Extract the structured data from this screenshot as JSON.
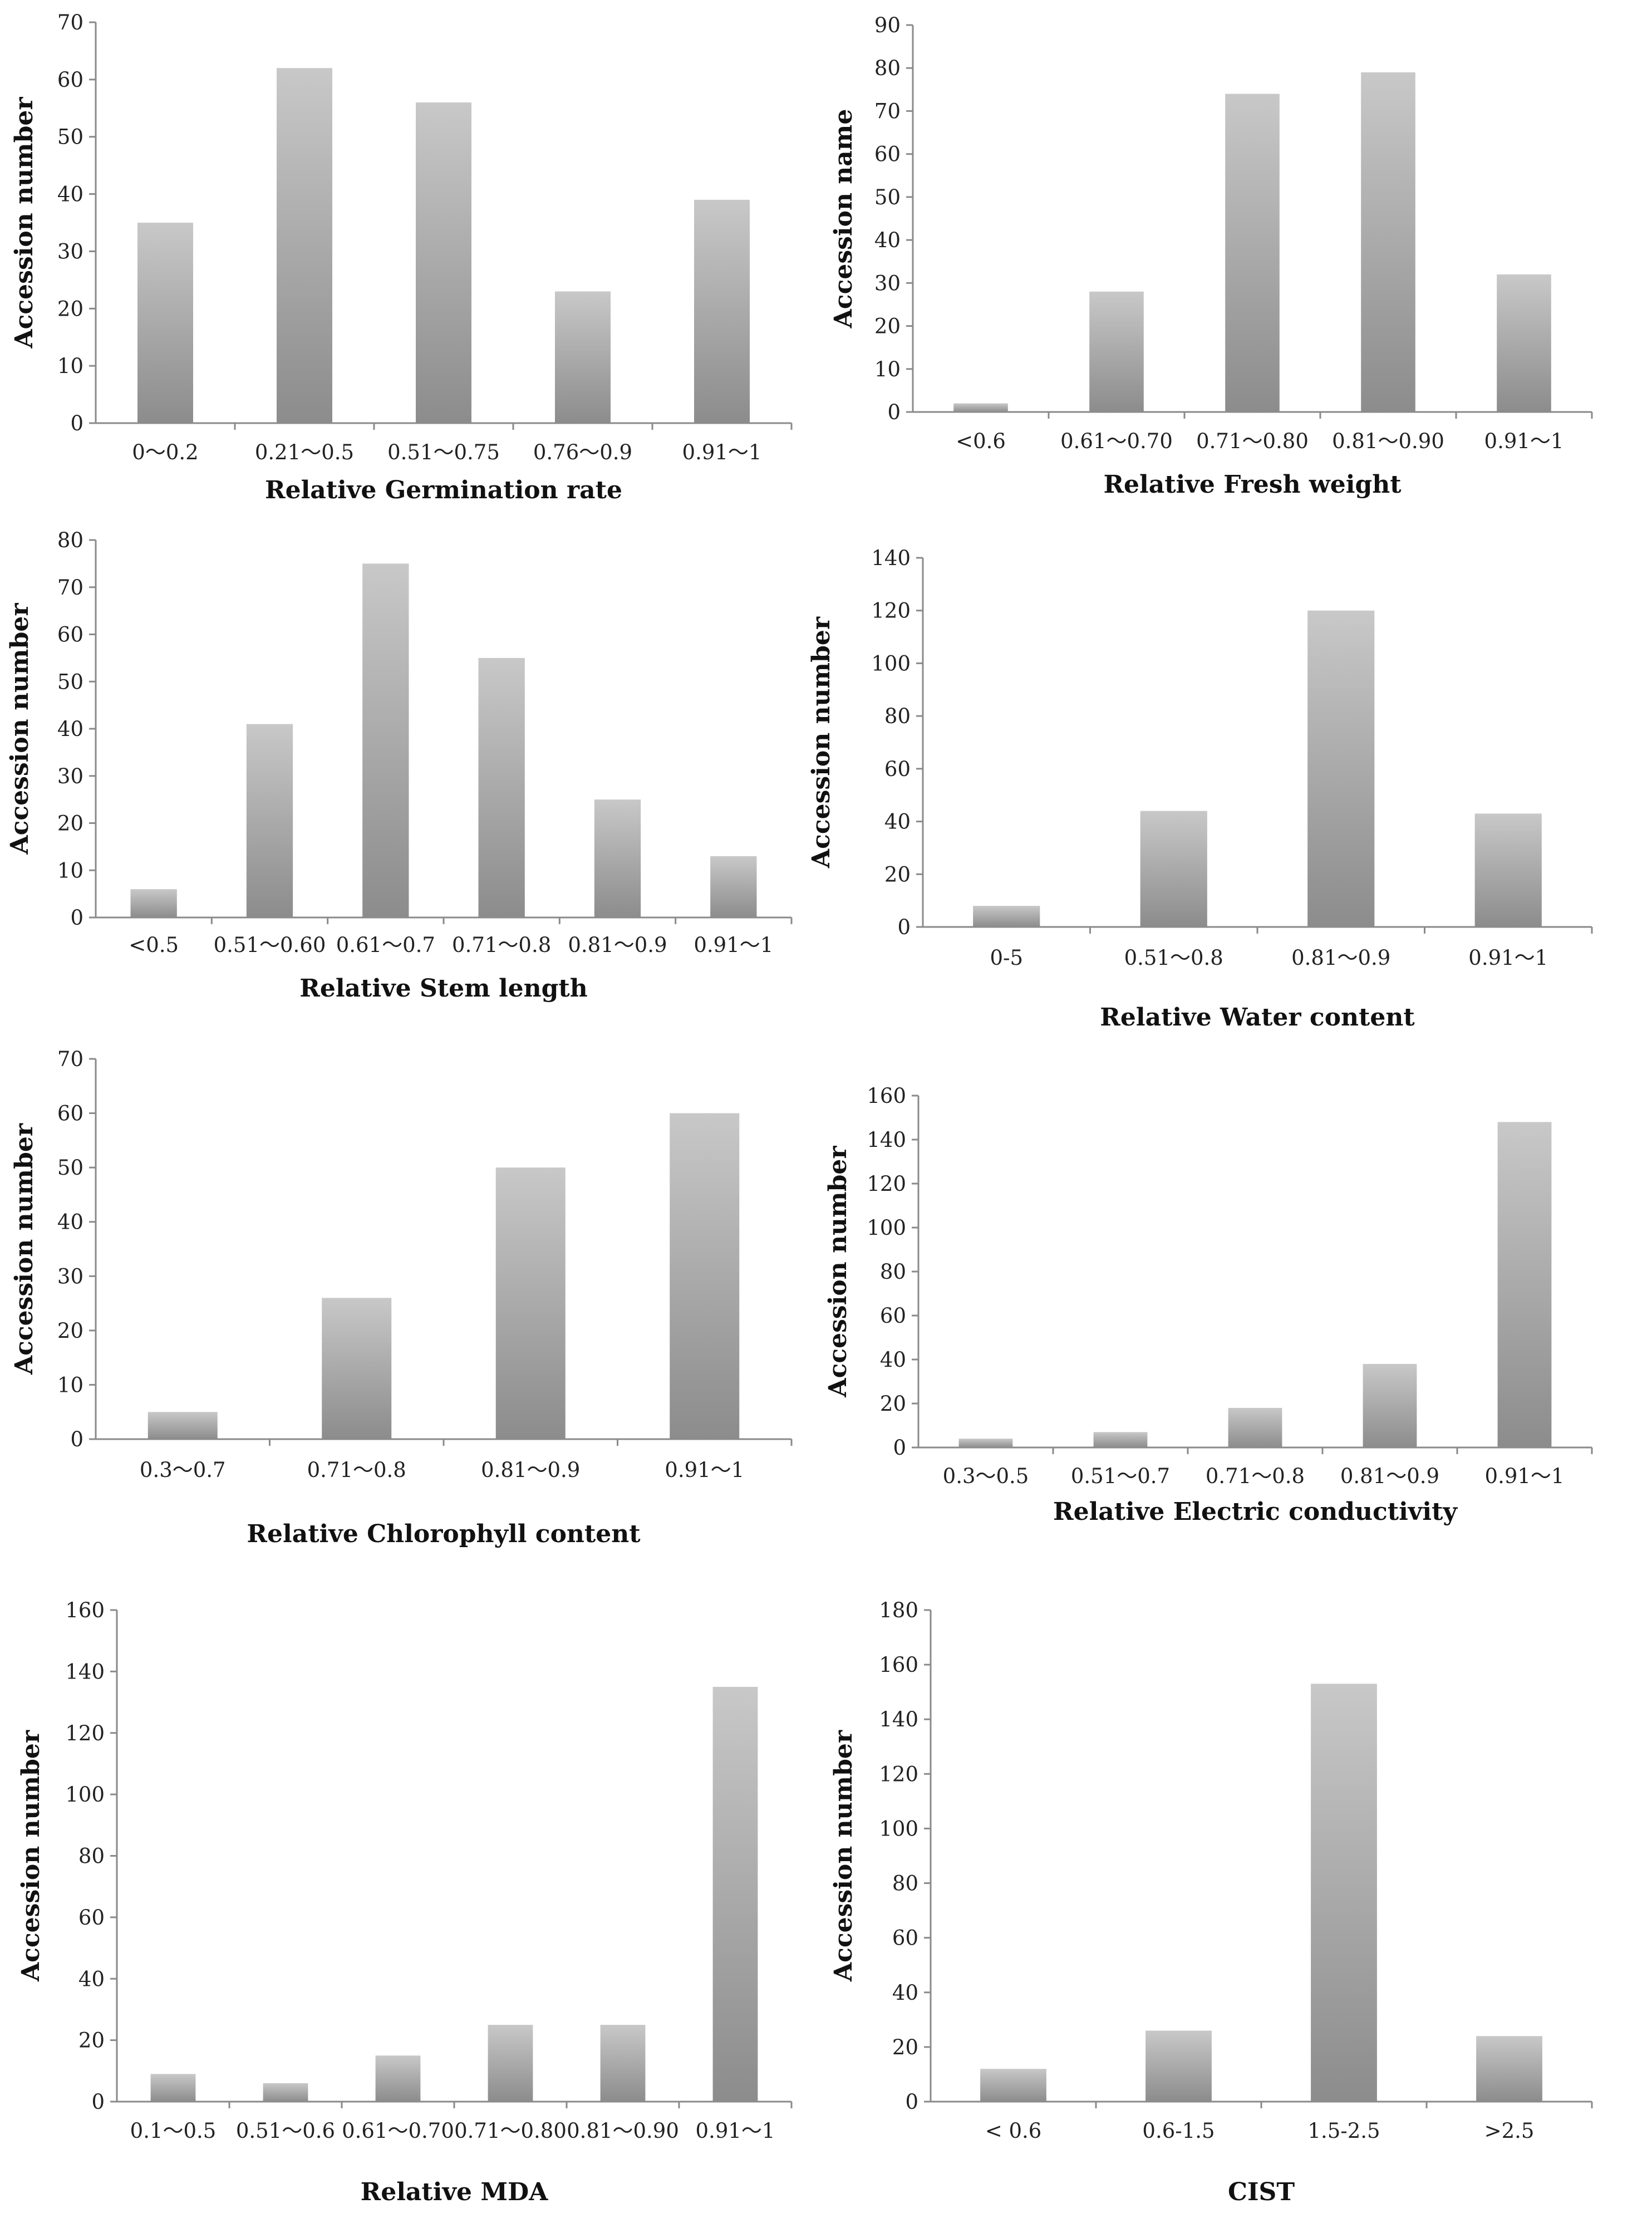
{
  "chart_data": [
    {
      "type": "bar",
      "title": "",
      "xlabel": "Relative Germination rate",
      "ylabel": "Accession number",
      "ylim": [
        0,
        70
      ],
      "ytick_step": 10,
      "categories": [
        "0～0.2",
        "0.21～0.5",
        "0.51～0.75",
        "0.76～0.9",
        "0.91～1"
      ],
      "values": [
        35,
        62,
        56,
        23,
        39
      ]
    },
    {
      "type": "bar",
      "title": "",
      "xlabel": "Relative Fresh weight",
      "ylabel": "Accession name",
      "ylim": [
        0,
        90
      ],
      "ytick_step": 10,
      "categories": [
        "<0.6",
        "0.61～0.70",
        "0.71～0.80",
        "0.81～0.90",
        "0.91～1"
      ],
      "values": [
        2,
        28,
        74,
        79,
        32
      ]
    },
    {
      "type": "bar",
      "title": "",
      "xlabel": "Relative Stem length",
      "ylabel": "Accession number",
      "ylim": [
        0,
        80
      ],
      "ytick_step": 10,
      "categories": [
        "<0.5",
        "0.51～0.60",
        "0.61～0.7",
        "0.71～0.8",
        "0.81～0.9",
        "0.91～1"
      ],
      "values": [
        6,
        41,
        75,
        55,
        25,
        13
      ]
    },
    {
      "type": "bar",
      "title": "",
      "xlabel": "Relative Water content",
      "ylabel": "Accession number",
      "ylim": [
        0,
        140
      ],
      "ytick_step": 20,
      "categories": [
        "0-5",
        "0.51～0.8",
        "0.81～0.9",
        "0.91～1"
      ],
      "values": [
        8,
        44,
        120,
        43
      ]
    },
    {
      "type": "bar",
      "title": "",
      "xlabel": "Relative Chlorophyll content",
      "ylabel": "Accession number",
      "ylim": [
        0,
        70
      ],
      "ytick_step": 10,
      "categories": [
        "0.3～0.7",
        "0.71～0.8",
        "0.81～0.9",
        "0.91～1"
      ],
      "values": [
        5,
        26,
        50,
        60
      ]
    },
    {
      "type": "bar",
      "title": "",
      "xlabel": "Relative Electric conductivity",
      "ylabel": "Accession number",
      "ylim": [
        0,
        160
      ],
      "ytick_step": 20,
      "categories": [
        "0.3～0.5",
        "0.51～0.7",
        "0.71～0.8",
        "0.81～0.9",
        "0.91～1"
      ],
      "values": [
        4,
        7,
        18,
        38,
        148
      ]
    },
    {
      "type": "bar",
      "title": "",
      "xlabel": "Relative MDA",
      "ylabel": "Accession number",
      "ylim": [
        0,
        160
      ],
      "ytick_step": 20,
      "categories": [
        "0.1～0.5",
        "0.51～0.6",
        "0.61～0.70",
        "0.71～0.80",
        "0.81～0.90",
        "0.91～1"
      ],
      "values": [
        9,
        6,
        15,
        25,
        25,
        135
      ]
    },
    {
      "type": "bar",
      "title": "",
      "xlabel": "CIST",
      "ylabel": "Accession number",
      "ylim": [
        0,
        180
      ],
      "ytick_step": 20,
      "categories": [
        "< 0.6",
        "0.6-1.5",
        "1.5-2.5",
        ">2.5"
      ],
      "values": [
        12,
        26,
        153,
        24
      ]
    }
  ],
  "colors": {
    "bar_top": "#c8c8c8",
    "bar_bottom": "#8c8c8c",
    "axis": "#8a8a8a",
    "text": "#222222"
  }
}
